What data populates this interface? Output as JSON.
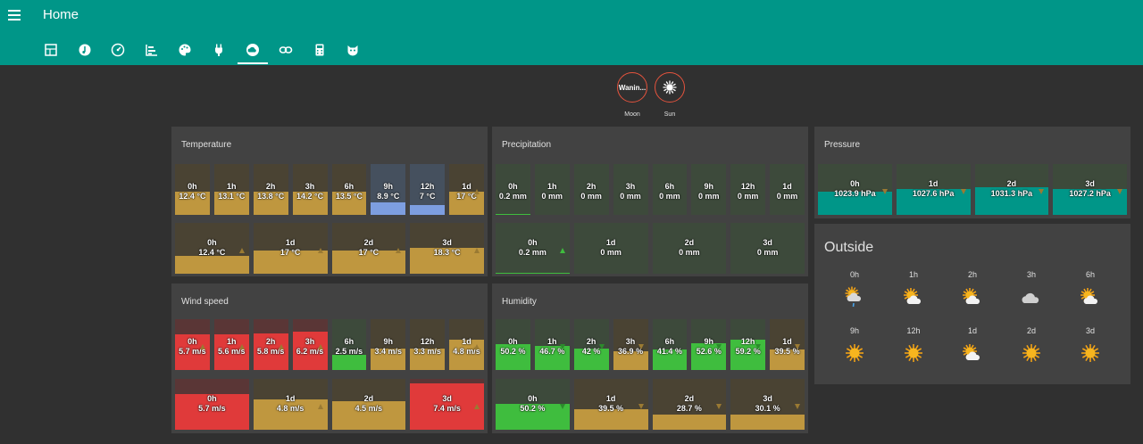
{
  "app": {
    "title": "Home"
  },
  "tabs": [
    {
      "icon": "dashboard-icon"
    },
    {
      "icon": "music-icon"
    },
    {
      "icon": "gauge-icon"
    },
    {
      "icon": "chart-bar-icon"
    },
    {
      "icon": "palette-icon"
    },
    {
      "icon": "plug-icon"
    },
    {
      "icon": "weather-cloud-icon",
      "active": true
    },
    {
      "icon": "link-icon"
    },
    {
      "icon": "calculator-icon"
    },
    {
      "icon": "cat-icon"
    }
  ],
  "badges": [
    {
      "value": "Wanin...",
      "label": "Moon"
    },
    {
      "label": "Sun",
      "icon": "sun-icon"
    }
  ],
  "colors": {
    "accent": "#009688",
    "gold": "#bf973f",
    "blue": "#7d9ee0",
    "green": "#3fbd3e",
    "red": "#e03a3a",
    "teal": "#009688"
  },
  "temperature": {
    "title": "Temperature",
    "row1": [
      {
        "h": "0h",
        "v": "12.4 °C",
        "color": "gold",
        "level": 0.45
      },
      {
        "h": "1h",
        "v": "13.1 °C",
        "color": "gold",
        "level": 0.45
      },
      {
        "h": "2h",
        "v": "13.8 °C",
        "color": "gold",
        "level": 0.45
      },
      {
        "h": "3h",
        "v": "14.2 °C",
        "color": "gold",
        "level": 0.45
      },
      {
        "h": "6h",
        "v": "13.5 °C",
        "color": "gold",
        "level": 0.45
      },
      {
        "h": "9h",
        "v": "8.9 °C",
        "color": "blue",
        "level": 0.25
      },
      {
        "h": "12h",
        "v": "7 °C",
        "color": "blue",
        "level": 0.2
      },
      {
        "h": "1d",
        "v": "17 °C",
        "color": "gold",
        "level": 0.45
      }
    ],
    "row2": [
      {
        "h": "0h",
        "v": "12.4 °C",
        "color": "gold",
        "level": 0.35
      },
      {
        "h": "1d",
        "v": "17 °C",
        "color": "gold",
        "level": 0.45
      },
      {
        "h": "2d",
        "v": "17 °C",
        "color": "gold",
        "level": 0.45
      },
      {
        "h": "3d",
        "v": "18.3 °C",
        "color": "gold",
        "level": 0.5
      }
    ]
  },
  "precipitation": {
    "title": "Precipitation",
    "row1": [
      {
        "h": "0h",
        "v": "0.2 mm",
        "color": "green",
        "level": 0.03
      },
      {
        "h": "1h",
        "v": "0 mm",
        "color": "green",
        "level": 0
      },
      {
        "h": "2h",
        "v": "0 mm",
        "color": "green",
        "level": 0
      },
      {
        "h": "3h",
        "v": "0 mm",
        "color": "green",
        "level": 0
      },
      {
        "h": "6h",
        "v": "0 mm",
        "color": "green",
        "level": 0
      },
      {
        "h": "9h",
        "v": "0 mm",
        "color": "green",
        "level": 0
      },
      {
        "h": "12h",
        "v": "0 mm",
        "color": "green",
        "level": 0
      },
      {
        "h": "1d",
        "v": "0 mm",
        "color": "green",
        "level": 0
      }
    ],
    "row2": [
      {
        "h": "0h",
        "v": "0.2 mm",
        "color": "green",
        "level": 0.03
      },
      {
        "h": "1d",
        "v": "0 mm",
        "color": "green",
        "level": 0
      },
      {
        "h": "2d",
        "v": "0 mm",
        "color": "green",
        "level": 0
      },
      {
        "h": "3d",
        "v": "0 mm",
        "color": "green",
        "level": 0
      }
    ]
  },
  "pressure": {
    "title": "Pressure",
    "row1": [
      {
        "h": "0h",
        "v": "1023.9 hPa",
        "color": "teal",
        "level": 0.45
      },
      {
        "h": "1d",
        "v": "1027.6 hPa",
        "color": "teal",
        "level": 0.5
      },
      {
        "h": "2d",
        "v": "1031.3 hPa",
        "color": "teal",
        "level": 0.55
      },
      {
        "h": "3d",
        "v": "1027.2 hPa",
        "color": "teal",
        "level": 0.5
      }
    ]
  },
  "wind": {
    "title": "Wind speed",
    "row1": [
      {
        "h": "0h",
        "v": "5.7 m/s",
        "color": "red",
        "level": 0.7
      },
      {
        "h": "1h",
        "v": "5.6 m/s",
        "color": "red",
        "level": 0.7
      },
      {
        "h": "2h",
        "v": "5.8 m/s",
        "color": "red",
        "level": 0.72
      },
      {
        "h": "3h",
        "v": "6.2 m/s",
        "color": "red",
        "level": 0.75
      },
      {
        "h": "6h",
        "v": "2.5 m/s",
        "color": "green",
        "level": 0.3
      },
      {
        "h": "9h",
        "v": "3.4 m/s",
        "color": "gold",
        "level": 0.42
      },
      {
        "h": "12h",
        "v": "3.3 m/s",
        "color": "gold",
        "level": 0.42
      },
      {
        "h": "1d",
        "v": "4.8 m/s",
        "color": "gold",
        "level": 0.6
      }
    ],
    "row2": [
      {
        "h": "0h",
        "v": "5.7 m/s",
        "color": "red",
        "level": 0.7
      },
      {
        "h": "1d",
        "v": "4.8 m/s",
        "color": "gold",
        "level": 0.6
      },
      {
        "h": "2d",
        "v": "4.5 m/s",
        "color": "gold",
        "level": 0.56
      },
      {
        "h": "3d",
        "v": "7.4 m/s",
        "color": "red",
        "level": 0.92
      }
    ]
  },
  "humidity": {
    "title": "Humidity",
    "row1": [
      {
        "h": "0h",
        "v": "50.2 %",
        "color": "green",
        "level": 0.5
      },
      {
        "h": "1h",
        "v": "46.7 %",
        "color": "green",
        "level": 0.47
      },
      {
        "h": "2h",
        "v": "42 %",
        "color": "green",
        "level": 0.42
      },
      {
        "h": "3h",
        "v": "36.9 %",
        "color": "gold",
        "level": 0.37
      },
      {
        "h": "6h",
        "v": "41.4 %",
        "color": "green",
        "level": 0.41
      },
      {
        "h": "9h",
        "v": "52.6 %",
        "color": "green",
        "level": 0.53
      },
      {
        "h": "12h",
        "v": "59.2 %",
        "color": "green",
        "level": 0.59
      },
      {
        "h": "1d",
        "v": "39.5 %",
        "color": "gold",
        "level": 0.4
      }
    ],
    "row2": [
      {
        "h": "0h",
        "v": "50.2 %",
        "color": "green",
        "level": 0.5
      },
      {
        "h": "1d",
        "v": "39.5 %",
        "color": "gold",
        "level": 0.4
      },
      {
        "h": "2d",
        "v": "28.7 %",
        "color": "gold",
        "level": 0.29
      },
      {
        "h": "3d",
        "v": "30.1 %",
        "color": "gold",
        "level": 0.3
      }
    ]
  },
  "outside": {
    "title": "Outside",
    "items": [
      {
        "h": "0h",
        "icon": "sun-cloud-rain-icon"
      },
      {
        "h": "1h",
        "icon": "sun-cloud-icon"
      },
      {
        "h": "2h",
        "icon": "sun-cloud-icon"
      },
      {
        "h": "3h",
        "icon": "cloud-icon"
      },
      {
        "h": "6h",
        "icon": "sun-cloud-icon"
      },
      {
        "h": "9h",
        "icon": "sun-icon"
      },
      {
        "h": "12h",
        "icon": "sun-icon"
      },
      {
        "h": "1d",
        "icon": "sun-cloud-icon"
      },
      {
        "h": "2d",
        "icon": "sun-icon"
      },
      {
        "h": "3d",
        "icon": "sun-icon"
      }
    ]
  }
}
